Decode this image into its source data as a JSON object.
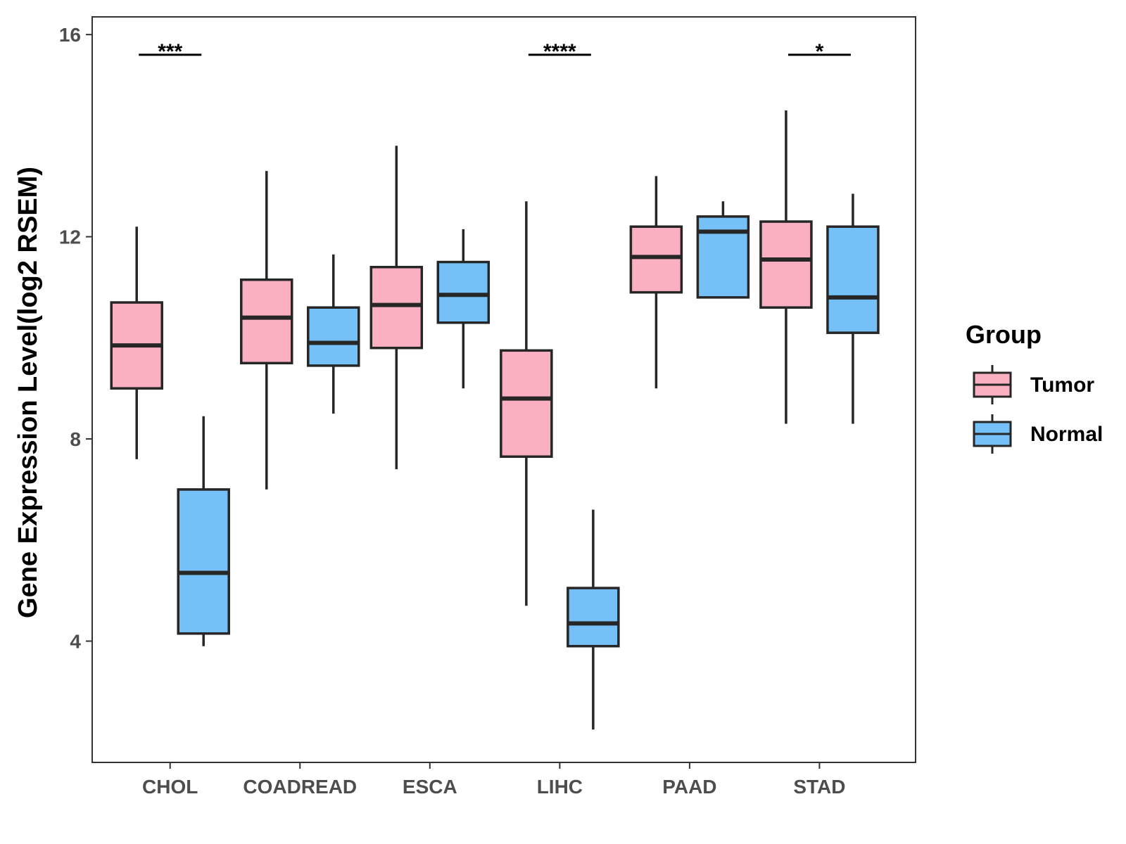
{
  "chart_data": {
    "type": "boxplot",
    "title": "",
    "xlabel": "",
    "ylabel": "Gene Expression Level(log2 RSEM)",
    "ylim": [
      1.6,
      16.35
    ],
    "yticks": [
      4,
      8,
      12,
      16
    ],
    "categories": [
      "CHOL",
      "COADREAD",
      "ESCA",
      "LIHC",
      "PAAD",
      "STAD"
    ],
    "legend": {
      "title": "Group",
      "position": "right",
      "entries": [
        {
          "name": "Tumor",
          "color": "#FBB0C1"
        },
        {
          "name": "Normal",
          "color": "#75C1F7"
        }
      ]
    },
    "series": [
      {
        "name": "Tumor",
        "color": "#FBB0C1",
        "boxes": [
          {
            "category": "CHOL",
            "min": 7.6,
            "q1": 9.0,
            "median": 9.85,
            "q3": 10.7,
            "max": 12.2
          },
          {
            "category": "COADREAD",
            "min": 7.0,
            "q1": 9.5,
            "median": 10.4,
            "q3": 11.15,
            "max": 13.3
          },
          {
            "category": "ESCA",
            "min": 7.4,
            "q1": 9.8,
            "median": 10.65,
            "q3": 11.4,
            "max": 13.8
          },
          {
            "category": "LIHC",
            "min": 4.7,
            "q1": 7.65,
            "median": 8.8,
            "q3": 9.75,
            "max": 12.7
          },
          {
            "category": "PAAD",
            "min": 9.0,
            "q1": 10.9,
            "median": 11.6,
            "q3": 12.2,
            "max": 13.2
          },
          {
            "category": "STAD",
            "min": 8.3,
            "q1": 10.6,
            "median": 11.55,
            "q3": 12.3,
            "max": 14.5
          }
        ]
      },
      {
        "name": "Normal",
        "color": "#75C1F7",
        "boxes": [
          {
            "category": "CHOL",
            "min": 3.9,
            "q1": 4.15,
            "median": 5.35,
            "q3": 7.0,
            "max": 8.45
          },
          {
            "category": "COADREAD",
            "min": 8.5,
            "q1": 9.45,
            "median": 9.9,
            "q3": 10.6,
            "max": 11.65
          },
          {
            "category": "ESCA",
            "min": 9.0,
            "q1": 10.3,
            "median": 10.85,
            "q3": 11.5,
            "max": 12.15
          },
          {
            "category": "LIHC",
            "min": 2.25,
            "q1": 3.9,
            "median": 4.35,
            "q3": 5.05,
            "max": 6.6
          },
          {
            "category": "PAAD",
            "min": 10.8,
            "q1": 10.8,
            "median": 12.1,
            "q3": 12.4,
            "max": 12.7
          },
          {
            "category": "STAD",
            "min": 8.3,
            "q1": 10.1,
            "median": 10.8,
            "q3": 12.2,
            "max": 12.85
          }
        ]
      }
    ],
    "significance": [
      {
        "category": "CHOL",
        "label": "***",
        "y": 15.6
      },
      {
        "category": "LIHC",
        "label": "****",
        "y": 15.6
      },
      {
        "category": "STAD",
        "label": "*",
        "y": 15.6
      }
    ]
  }
}
